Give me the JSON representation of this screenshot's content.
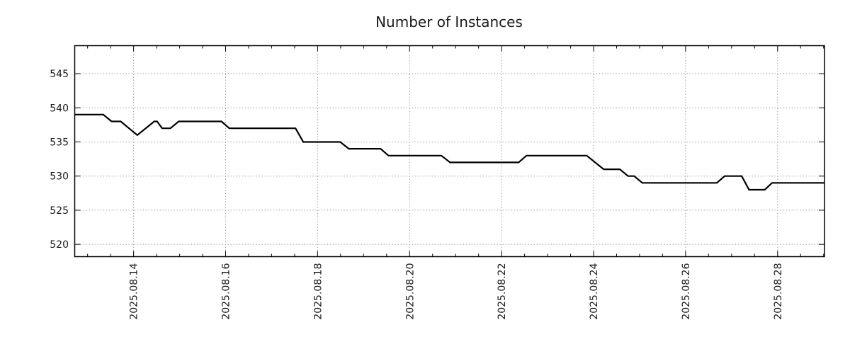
{
  "chart_data": {
    "type": "line",
    "title": "Number of Instances",
    "x_axis": {
      "label": "",
      "time_origin": "2025.08.13 00:00",
      "units": "days since origin",
      "range": [
        -0.28,
        16.02
      ],
      "major_ticks": [
        {
          "t": 1,
          "label": "2025.08.14"
        },
        {
          "t": 3,
          "label": "2025.08.16"
        },
        {
          "t": 5,
          "label": "2025.08.18"
        },
        {
          "t": 7,
          "label": "2025.08.20"
        },
        {
          "t": 9,
          "label": "2025.08.22"
        },
        {
          "t": 11,
          "label": "2025.08.24"
        },
        {
          "t": 13,
          "label": "2025.08.26"
        },
        {
          "t": 15,
          "label": "2025.08.28"
        }
      ],
      "minor_tick_step": 0.5,
      "grid": "dotted-at-major"
    },
    "y_axis": {
      "label": "",
      "range": [
        518.2,
        549.1
      ],
      "major_ticks": [
        {
          "v": 520,
          "label": "520"
        },
        {
          "v": 525,
          "label": "525"
        },
        {
          "v": 530,
          "label": "530"
        },
        {
          "v": 535,
          "label": "535"
        },
        {
          "v": 540,
          "label": "540"
        },
        {
          "v": 545,
          "label": "545"
        }
      ],
      "grid": "dotted-at-major"
    },
    "series": [
      {
        "name": "instances",
        "color": "#000000",
        "points": [
          [
            -0.28,
            539
          ],
          [
            0.34,
            539
          ],
          [
            0.52,
            538
          ],
          [
            0.72,
            538
          ],
          [
            1.08,
            536
          ],
          [
            1.45,
            538
          ],
          [
            1.51,
            538
          ],
          [
            1.62,
            537
          ],
          [
            1.8,
            537
          ],
          [
            1.98,
            538
          ],
          [
            2.91,
            538
          ],
          [
            3.08,
            537
          ],
          [
            4.52,
            537
          ],
          [
            4.69,
            535
          ],
          [
            5.49,
            535
          ],
          [
            5.68,
            534
          ],
          [
            6.37,
            534
          ],
          [
            6.54,
            533
          ],
          [
            7.69,
            533
          ],
          [
            7.88,
            532
          ],
          [
            9.37,
            532
          ],
          [
            9.54,
            533
          ],
          [
            10.85,
            533
          ],
          [
            11.22,
            531
          ],
          [
            11.57,
            531
          ],
          [
            11.75,
            530
          ],
          [
            11.88,
            530
          ],
          [
            12.06,
            529
          ],
          [
            13.68,
            529
          ],
          [
            13.85,
            530
          ],
          [
            14.22,
            530
          ],
          [
            14.38,
            528
          ],
          [
            14.72,
            528
          ],
          [
            14.88,
            529
          ],
          [
            16.02,
            529
          ]
        ]
      }
    ],
    "colors": {
      "background": "#ffffff",
      "axis": "#000000",
      "grid": "#a0a0a0",
      "text": "#1a1a1a",
      "line": "#000000"
    },
    "legend": "none"
  }
}
